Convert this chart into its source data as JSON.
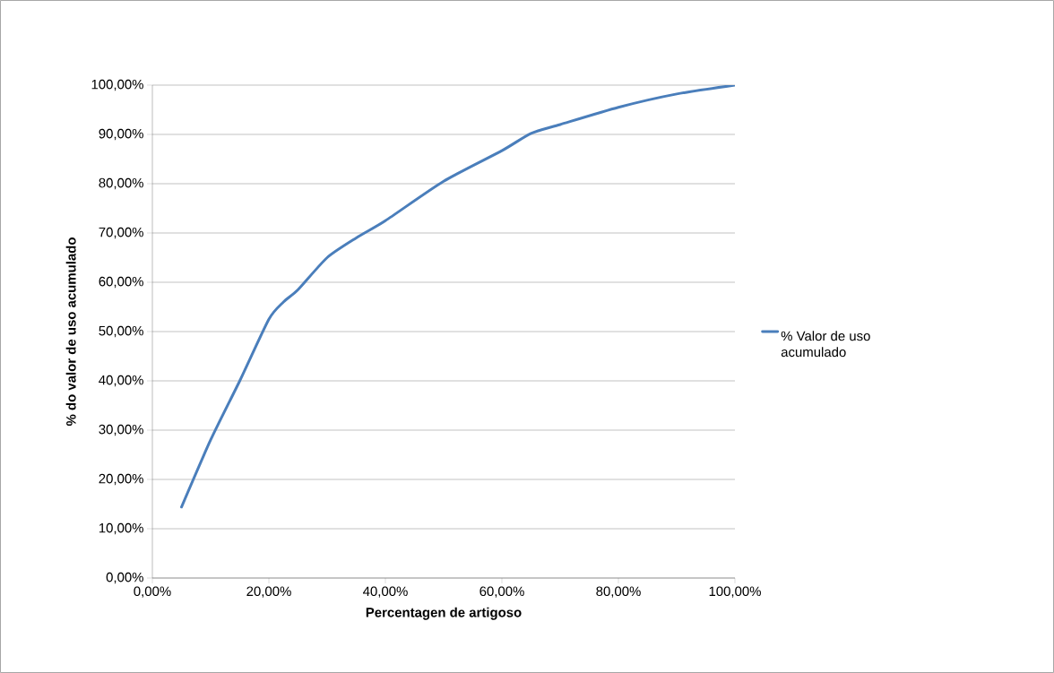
{
  "chart_data": {
    "type": "line",
    "xlabel": "Percentagen de artigoso",
    "ylabel": "% do valor de uso acumulado",
    "x": [
      5,
      10,
      15,
      20,
      22.5,
      25,
      30,
      35,
      40,
      50,
      60,
      65,
      70,
      80,
      90,
      100
    ],
    "series": [
      {
        "name": "% Valor de uso acumulado",
        "color": "#4a7ebb",
        "values": [
          14.4,
          28,
          40,
          52.5,
          56,
          58.5,
          65,
          69,
          72.5,
          80.5,
          86.7,
          90.2,
          92,
          95.5,
          98.2,
          100
        ]
      }
    ],
    "xlim": [
      0,
      100
    ],
    "ylim": [
      0,
      100
    ],
    "xticks": [
      {
        "value": 0,
        "label": "0,00%"
      },
      {
        "value": 20,
        "label": "20,00%"
      },
      {
        "value": 40,
        "label": "40,00%"
      },
      {
        "value": 60,
        "label": "60,00%"
      },
      {
        "value": 80,
        "label": "80,00%"
      },
      {
        "value": 100,
        "label": "100,00%"
      }
    ],
    "yticks": [
      {
        "value": 0,
        "label": "0,00%"
      },
      {
        "value": 10,
        "label": "10,00%"
      },
      {
        "value": 20,
        "label": "20,00%"
      },
      {
        "value": 30,
        "label": "30,00%"
      },
      {
        "value": 40,
        "label": "40,00%"
      },
      {
        "value": 50,
        "label": "50,00%"
      },
      {
        "value": 60,
        "label": "60,00%"
      },
      {
        "value": 70,
        "label": "70,00%"
      },
      {
        "value": 80,
        "label": "80,00%"
      },
      {
        "value": 90,
        "label": "90,00%"
      },
      {
        "value": 100,
        "label": "100,00%"
      }
    ],
    "grid": "y",
    "legend": "right",
    "marker": "none",
    "line_style": "solid"
  }
}
